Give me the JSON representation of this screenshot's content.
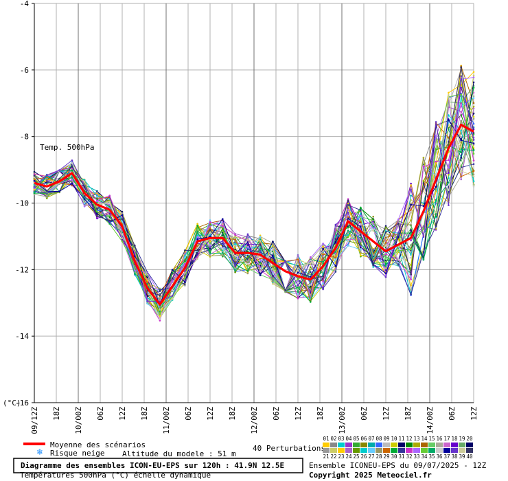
{
  "chart_data": {
    "type": "line",
    "annotation": "Temp. 500hPa",
    "yunit": "(°C)",
    "ylim": [
      -16,
      -4
    ],
    "yticks": [
      -16,
      -14,
      -12,
      -10,
      -8,
      -6,
      -4
    ],
    "ytick_labels": [
      "-16",
      "-14",
      "-12",
      "-10",
      "-8",
      "-6",
      "-4"
    ],
    "x_labels": [
      "09/12Z",
      "18Z",
      "10/00Z",
      "06Z",
      "12Z",
      "18Z",
      "11/00Z",
      "06Z",
      "12Z",
      "18Z",
      "12/00Z",
      "06Z",
      "12Z",
      "18Z",
      "13/00Z",
      "06Z",
      "12Z",
      "18Z",
      "14/00Z",
      "06Z",
      "12Z"
    ],
    "grid": true,
    "mean_series": {
      "name": "Moyenne des scénarios",
      "color": "#ff0000",
      "values": [
        -9.4,
        -9.5,
        -9.35,
        -9.1,
        -9.7,
        -10.05,
        -10.2,
        -10.7,
        -11.75,
        -12.55,
        -13.05,
        -12.5,
        -11.95,
        -11.15,
        -11.05,
        -11.05,
        -11.5,
        -11.5,
        -11.55,
        -11.8,
        -12.05,
        -12.2,
        -12.3,
        -11.9,
        -11.35,
        -10.55,
        -10.85,
        -11.15,
        -11.45,
        -11.25,
        -11.05,
        -10.25,
        -9.3,
        -8.35,
        -7.65,
        -7.85
      ]
    },
    "perturbation_count": 40,
    "member_colors": [
      "#ffcc00",
      "#888888",
      "#00cccc",
      "#9933cc",
      "#33aa33",
      "#888800",
      "#00aaaa",
      "#3366ff",
      "#bbbbbb",
      "#cccc00",
      "#000066",
      "#008800",
      "#aaaa00",
      "#aa6600",
      "#66cc66",
      "#aaaa99",
      "#cc66cc",
      "#6600cc",
      "#66aa66",
      "#000066",
      "#999999",
      "#cccc66",
      "#ffcc00",
      "#aa66cc",
      "#669900",
      "#00cccc",
      "#66ccff",
      "#999966",
      "#cc6600",
      "#00aa33",
      "#333399",
      "#cc33cc",
      "#aa66ff",
      "#66cc33",
      "#00aa66",
      "#cccccc",
      "#000099",
      "#6633cc",
      "#cccc99",
      "#333366"
    ]
  },
  "legend": {
    "mean_label": "Moyenne des scénarios",
    "snow_label": "Risque neige",
    "altitude_label": "Altitude du modele : 51 m",
    "perturbations_label": "40 Perturbations",
    "members_row1": [
      "01",
      "02",
      "03",
      "04",
      "05",
      "06",
      "07",
      "08",
      "09",
      "10",
      "11",
      "12",
      "13",
      "14",
      "15",
      "16",
      "17",
      "18",
      "19",
      "20"
    ],
    "members_row2": [
      "21",
      "22",
      "23",
      "24",
      "25",
      "26",
      "27",
      "28",
      "29",
      "30",
      "31",
      "32",
      "33",
      "34",
      "35",
      "36",
      "37",
      "38",
      "39",
      "40"
    ]
  },
  "footer": {
    "title": "Diagramme des ensembles ICON-EU-EPS sur 120h : 41.9N 12.5E",
    "subtitle": "Températures 500hPa (°C) échelle dynamique",
    "run_info": "Ensemble ICONEU-EPS du 09/07/2025 - 12Z",
    "copyright": "Copyright 2025 Meteociel.fr"
  }
}
